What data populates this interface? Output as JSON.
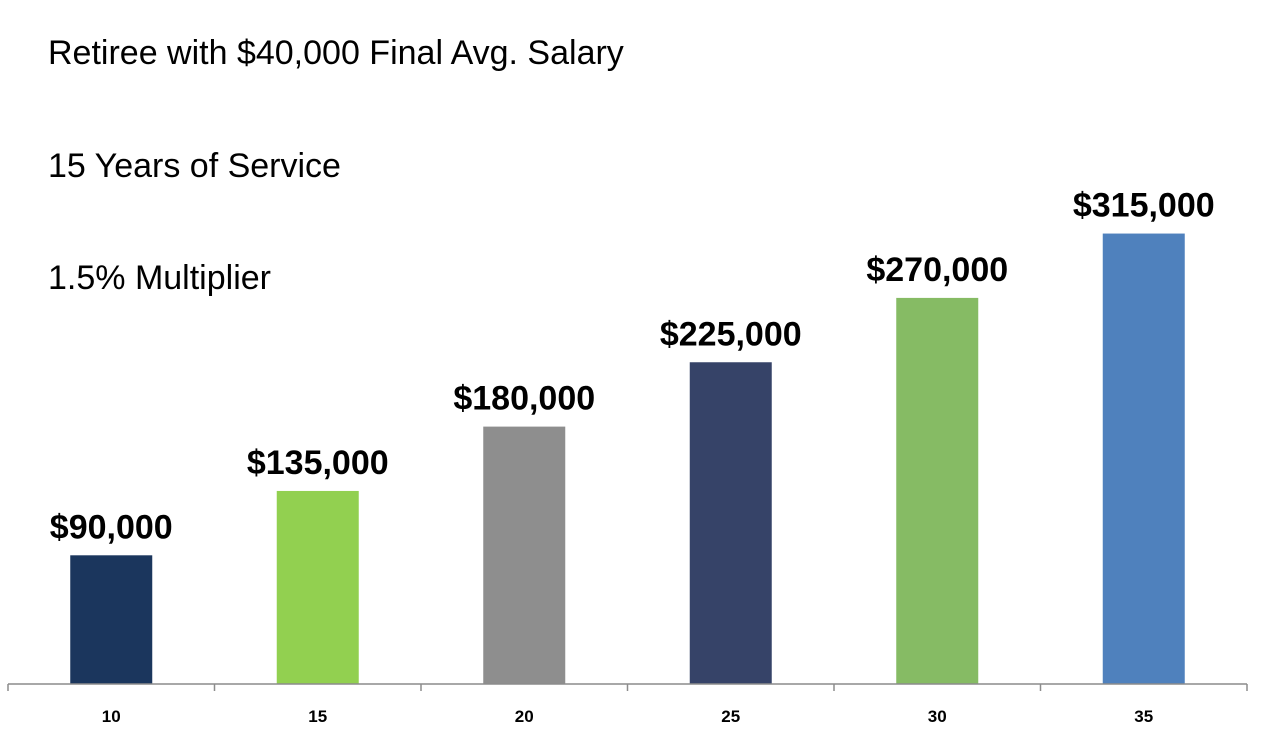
{
  "chart_data": {
    "type": "bar",
    "title": "",
    "xlabel": "",
    "ylabel": "",
    "annotations": [
      "Retiree with $40,000 Final Avg. Salary",
      "15 Years of Service",
      "1.5% Multiplier"
    ],
    "categories": [
      "10",
      "15",
      "20",
      "25",
      "30",
      "35"
    ],
    "values": [
      90000,
      135000,
      180000,
      225000,
      270000,
      315000
    ],
    "data_labels": [
      "$90,000",
      "$135,000",
      "$180,000",
      "$225,000",
      "$270,000",
      "$315,000"
    ],
    "bar_colors": [
      "#1b365d",
      "#92d050",
      "#8e8e8e",
      "#364368",
      "#86bb64",
      "#4f81bd"
    ],
    "ylim": [
      0,
      350000
    ],
    "grid": false,
    "legend": "none"
  }
}
